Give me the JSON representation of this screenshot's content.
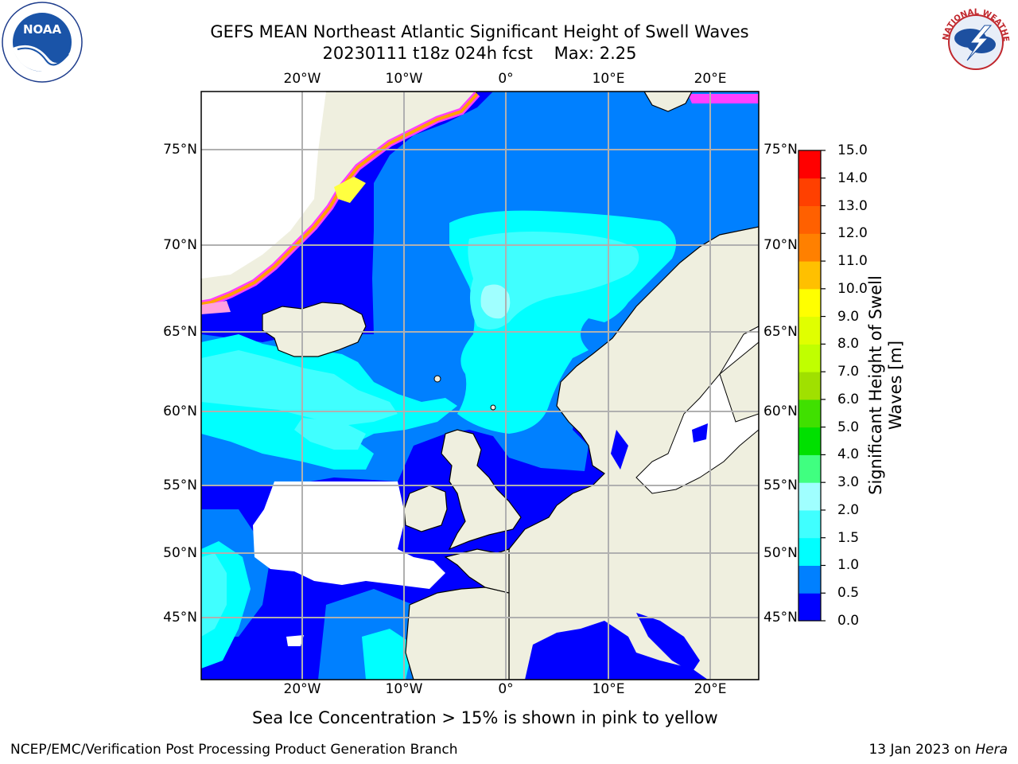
{
  "header": {
    "title_line1": "GEFS MEAN Northeast Atlantic Significant Height of Swell Waves",
    "title_line2": "20230111 t18z 024h fcst    Max: 2.25"
  },
  "logos": {
    "noaa_text": "NOAA",
    "nws_text": "NATIONAL WEATHER SERVICE"
  },
  "map": {
    "lon_ticks_top": [
      "20°W",
      "10°W",
      "0°",
      "10°E",
      "20°E"
    ],
    "lon_ticks_bottom": [
      "20°W",
      "10°W",
      "0°",
      "10°E",
      "20°E"
    ],
    "lat_ticks_left": [
      "75°N",
      "70°N",
      "65°N",
      "60°N",
      "55°N",
      "50°N",
      "45°N"
    ],
    "lat_ticks_right": [
      "75°N",
      "70°N",
      "65°N",
      "60°N",
      "55°N",
      "50°N",
      "45°N"
    ],
    "colors": {
      "land": "#efefdf",
      "band0": "#0000ff",
      "band1": "#0080ff",
      "band2": "#00ffff",
      "band3": "#40ffff",
      "band4": "#a0ffff",
      "ice_pink": "#ff40ff",
      "ice_orange": "#ffa000",
      "ice_yellow": "#ffff40",
      "grid": "#b0b0b0"
    }
  },
  "colorbar": {
    "title": "Significant Height of Swell Waves [m]",
    "tick_labels": [
      "0.0",
      "0.5",
      "1.0",
      "1.5",
      "2.0",
      "3.0",
      "4.0",
      "5.0",
      "6.0",
      "7.0",
      "8.0",
      "9.0",
      "10.0",
      "11.0",
      "12.0",
      "13.0",
      "14.0",
      "15.0"
    ],
    "colors": [
      "#0000ff",
      "#0080ff",
      "#00ffff",
      "#40ffff",
      "#a0ffff",
      "#40ff80",
      "#00e000",
      "#40e000",
      "#a0e000",
      "#c0ff00",
      "#e0ff00",
      "#ffff00",
      "#ffc000",
      "#ff8000",
      "#ff6000",
      "#ff4000",
      "#ff0000"
    ]
  },
  "footer": {
    "sea_ice_note": "Sea Ice Concentration > 15% is shown in pink to yellow",
    "left": "NCEP/EMC/Verification Post Processing Product Generation Branch",
    "right_prefix": "13 Jan 2023 on ",
    "right_host": "Hera"
  }
}
